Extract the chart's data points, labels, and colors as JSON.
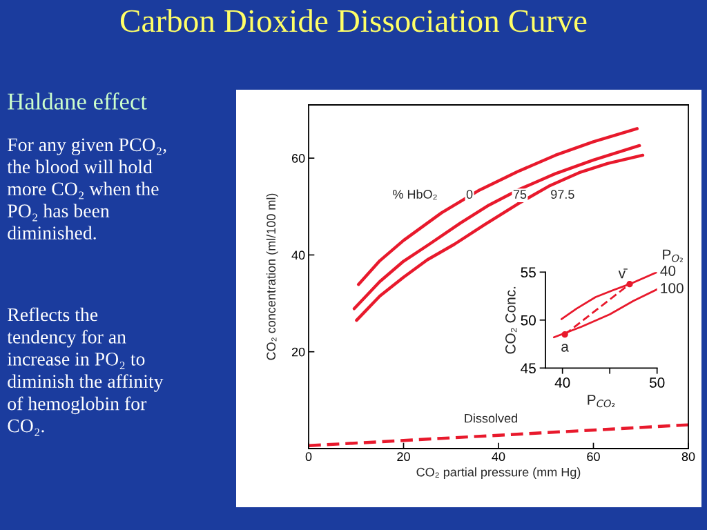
{
  "chart_data": [
    {
      "type": "line",
      "title": "Carbon Dioxide Dissociation Curve",
      "xlabel": "CO₂ partial pressure (mm Hg)",
      "ylabel": "CO₂ concentration (ml/100 ml)",
      "xlim": [
        0,
        80
      ],
      "ylim": [
        0,
        71
      ],
      "xticks": [
        0,
        20,
        40,
        60,
        80
      ],
      "yticks": [
        20,
        40,
        60
      ],
      "grid": false,
      "legend": false,
      "marker": "none",
      "series": [
        {
          "color": "#e8192c",
          "x": [
            10.5,
            15,
            20,
            28,
            36,
            44,
            52,
            60,
            69.2
          ],
          "values": [
            33.9,
            38.8,
            43,
            48.7,
            53.4,
            57.2,
            60.6,
            63.4,
            66.1
          ]
        },
        {
          "color": "#e8192c",
          "x": [
            9.6,
            15,
            20,
            25.4,
            32,
            38,
            44.5,
            52,
            60,
            69.7
          ],
          "values": [
            28.9,
            34.5,
            38.7,
            42.2,
            46.6,
            50.3,
            53.6,
            56.8,
            59.6,
            62.6
          ]
        },
        {
          "color": "#e8192c",
          "x": [
            10.1,
            15,
            20,
            25,
            30.7,
            37,
            44,
            50.6,
            57,
            63,
            70.4
          ],
          "values": [
            26.5,
            31.5,
            35.4,
            39,
            42.2,
            46.2,
            50.5,
            54.2,
            57,
            58.9,
            60.6
          ]
        },
        {
          "color": "#e8192c",
          "line_style": "dashed",
          "x": [
            0,
            80
          ],
          "values": [
            0.6,
            4.9
          ]
        }
      ],
      "annotations": [
        "Haldane effect",
        "For any given PCO₂,\nthe blood will hold\nmore CO₂ when the\nPO₂ has been\ndiminished.",
        "Reflects the\ntendency for an\nincrease in PO₂ to\ndiminish the affinity\nof hemoglobin for\nCO₂.",
        "% HbO₂",
        "Dissolved",
        {
          "text": "0",
          "x": 33.9,
          "y": 52.3
        },
        {
          "text": "75",
          "x": 44.5,
          "y": 52.3
        },
        {
          "text": "97.5",
          "x": 53.5,
          "y": 52.3
        }
      ]
    },
    {
      "type": "line",
      "xlabel": "P$_{CO₂}$",
      "ylabel": "CO₂ Conc.",
      "legend_title": "P$_{O₂}$",
      "xlim": [
        38.2,
        50
      ],
      "ylim": [
        45,
        55
      ],
      "xticks": [
        40,
        {
          "value": 45,
          "label": null
        },
        50
      ],
      "yticks": [
        45,
        50,
        55
      ],
      "grid": false,
      "legend": false,
      "series": [
        {
          "name": "40",
          "color": "#e8192c",
          "x": [
            39.9,
            41.5,
            43.5,
            45.3,
            47.1,
            50
          ],
          "values": [
            50.1,
            51.2,
            52.4,
            53.1,
            53.75,
            55
          ]
        },
        {
          "name": "100",
          "color": "#e8192c",
          "x": [
            39.1,
            42,
            45,
            47.5,
            50
          ],
          "values": [
            48.2,
            49.3,
            50.6,
            52,
            53.2
          ]
        },
        {
          "color": "#e8192c",
          "line_style": "dashed",
          "x": [
            40.25,
            47.1
          ],
          "values": [
            48.5,
            53.75
          ]
        },
        {
          "type": "scatter",
          "color": "#e8192c",
          "marker": "circle",
          "x": [
            40.25,
            47.1
          ],
          "values": [
            48.5,
            53.75
          ]
        }
      ],
      "annotations": [
        {
          "text": "a",
          "x": 40.25,
          "y": 48.5
        },
        {
          "text": "v̄",
          "x": 47.1,
          "y": 53.75
        }
      ]
    }
  ]
}
